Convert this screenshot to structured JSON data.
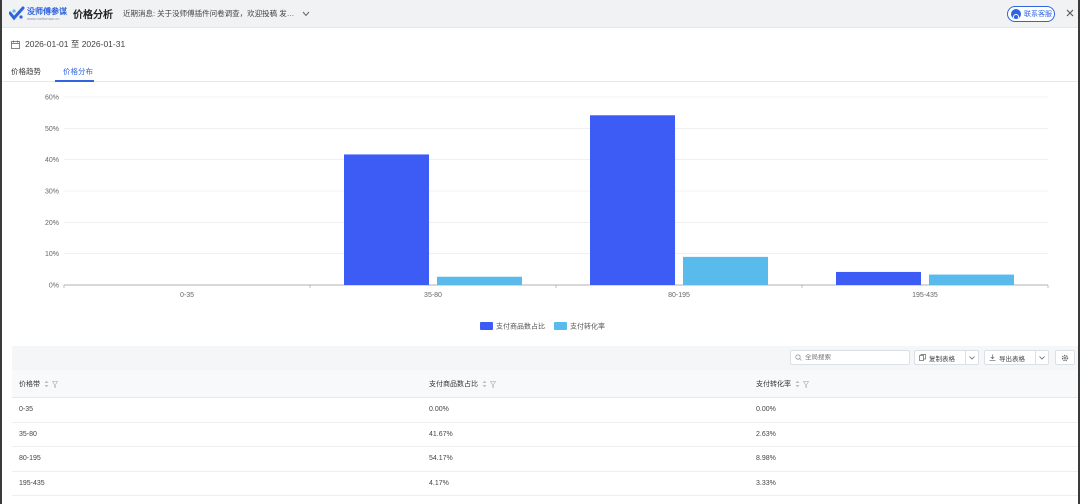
{
  "header": {
    "logo_name": "没师傅参谋",
    "logo_url": "www.meifumao.cn",
    "page_title": "价格分析",
    "notice": "近期消息: 关于没师傅插件问卷调查，欢迎投稿 发…",
    "contact_label": "联系客服"
  },
  "date_range": "2026-01-01 至 2026-01-31",
  "tabs": [
    {
      "label": "价格趋势",
      "active": false
    },
    {
      "label": "价格分布",
      "active": true
    }
  ],
  "chart_data": {
    "type": "bar",
    "categories": [
      "0-35",
      "35-80",
      "80-195",
      "195-435"
    ],
    "series": [
      {
        "name": "支付商品数占比",
        "color": "#3d5cf5",
        "values": [
          0.0,
          41.67,
          54.17,
          4.17
        ]
      },
      {
        "name": "支付转化率",
        "color": "#58bbec",
        "values": [
          0.0,
          2.63,
          8.98,
          3.33
        ]
      }
    ],
    "ylim": [
      0,
      60
    ],
    "yticks": [
      "0%",
      "10%",
      "20%",
      "30%",
      "40%",
      "50%",
      "60%"
    ],
    "grid": true,
    "legend": "bottom-center"
  },
  "toolbar": {
    "search_placeholder": "全局搜索",
    "copy_label": "复制表格",
    "export_label": "导出表格"
  },
  "table": {
    "columns": [
      "价格带",
      "支付商品数占比",
      "支付转化率"
    ],
    "rows": [
      [
        "0-35",
        "0.00%",
        "0.00%"
      ],
      [
        "35-80",
        "41.67%",
        "2.63%"
      ],
      [
        "80-195",
        "54.17%",
        "8.98%"
      ],
      [
        "195-435",
        "4.17%",
        "3.33%"
      ]
    ]
  },
  "colors": {
    "accent": "#2f63e0",
    "series1": "#3d5cf5",
    "series2": "#58bbec"
  }
}
